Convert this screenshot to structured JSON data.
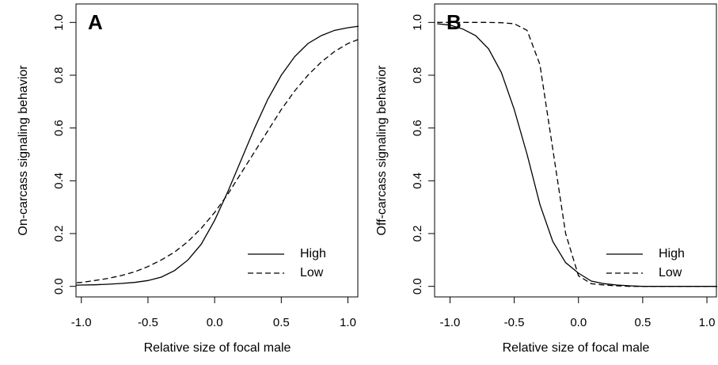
{
  "chart_data": [
    {
      "type": "line",
      "title": "A",
      "x_label": "Relative size of focal male",
      "y_label": "On-carcass signaling behavior",
      "x": [
        -1.1,
        -1.0,
        -0.9,
        -0.8,
        -0.7,
        -0.6,
        -0.5,
        -0.4,
        -0.3,
        -0.2,
        -0.1,
        0.0,
        0.1,
        0.2,
        0.3,
        0.4,
        0.5,
        0.6,
        0.7,
        0.8,
        0.9,
        1.0,
        1.1
      ],
      "series": [
        {
          "name": "High",
          "color": "#000000",
          "dash": "solid",
          "values": [
            0.004,
            0.005,
            0.006,
            0.008,
            0.011,
            0.015,
            0.022,
            0.035,
            0.06,
            0.1,
            0.16,
            0.25,
            0.36,
            0.48,
            0.6,
            0.71,
            0.8,
            0.87,
            0.92,
            0.95,
            0.97,
            0.98,
            0.987
          ]
        },
        {
          "name": "Low",
          "color": "#000000",
          "dash": "dashed",
          "values": [
            0.012,
            0.015,
            0.022,
            0.03,
            0.041,
            0.055,
            0.075,
            0.1,
            0.13,
            0.17,
            0.22,
            0.28,
            0.35,
            0.43,
            0.51,
            0.59,
            0.67,
            0.74,
            0.8,
            0.85,
            0.89,
            0.92,
            0.94
          ]
        }
      ],
      "xlim": [
        -1.04,
        1.08
      ],
      "ylim": [
        -0.04,
        1.07
      ],
      "xticks": [
        {
          "value": -1.0,
          "label": "-1.0"
        },
        -0.5,
        {
          "value": 0.0,
          "label": "0.0"
        },
        0.5,
        {
          "value": 1.0,
          "label": "1.0"
        }
      ],
      "yticks": [
        {
          "value": 0.0,
          "label": "0.0"
        },
        0.2,
        0.4,
        0.6,
        0.8,
        {
          "value": 1.0,
          "label": "1.0"
        }
      ],
      "legend": "bottom-right"
    },
    {
      "type": "line",
      "title": "B",
      "x_label": "Relative size of focal male",
      "y_label": "Off-carcass signaling behavior",
      "x": [
        -1.1,
        -1.0,
        -0.9,
        -0.8,
        -0.7,
        -0.6,
        -0.5,
        -0.4,
        -0.3,
        -0.2,
        -0.1,
        0.0,
        0.1,
        0.2,
        0.3,
        0.4,
        0.5,
        0.6,
        0.7,
        0.8,
        0.9,
        1.0,
        1.1
      ],
      "series": [
        {
          "name": "High",
          "color": "#000000",
          "dash": "solid",
          "values": [
            0.995,
            0.99,
            0.975,
            0.95,
            0.9,
            0.81,
            0.67,
            0.5,
            0.31,
            0.17,
            0.09,
            0.05,
            0.02,
            0.01,
            0.005,
            0.002,
            0.0,
            0.0,
            0.0,
            0.0,
            0.0,
            0.0,
            0.0
          ]
        },
        {
          "name": "Low",
          "color": "#000000",
          "dash": "dashed",
          "values": [
            1.0,
            1.0,
            1.0,
            1.0,
            1.0,
            0.999,
            0.995,
            0.97,
            0.84,
            0.52,
            0.2,
            0.04,
            0.01,
            0.005,
            0.002,
            0.0,
            0.0,
            0.0,
            0.0,
            0.0,
            0.0,
            0.0,
            0.0
          ]
        }
      ],
      "xlim": [
        -1.12,
        1.08
      ],
      "ylim": [
        -0.04,
        1.07
      ],
      "xticks": [
        {
          "value": -1.0,
          "label": "-1.0"
        },
        -0.5,
        {
          "value": 0.0,
          "label": "0.0"
        },
        0.5,
        {
          "value": 1.0,
          "label": "1.0"
        }
      ],
      "yticks": [
        {
          "value": 0.0,
          "label": "0.0"
        },
        0.2,
        0.4,
        0.6,
        0.8,
        {
          "value": 1.0,
          "label": "1.0"
        }
      ],
      "legend": "bottom-right"
    }
  ]
}
